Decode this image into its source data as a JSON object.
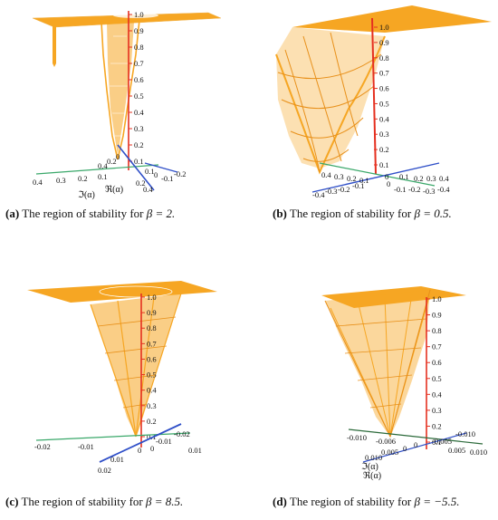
{
  "figures": [
    {
      "id": "a",
      "caption": {
        "label": "(a)",
        "text": "The region of stability for",
        "math": "β = 2."
      },
      "z_ticks": [
        "1.0",
        "0.9",
        "0.8",
        "0.7",
        "0.6",
        "0.5",
        "0.4",
        "0.3",
        "0.2",
        "0.1"
      ],
      "ticks_a": [
        "0.4",
        "0.3",
        "0.2",
        "0.1"
      ],
      "ticks_b": [
        "0.4",
        "0.2",
        "0",
        "0.2",
        "0.4"
      ],
      "ticks_c": [
        "0.1",
        "0",
        "-0.1",
        "-0.2"
      ],
      "axis_labels": [
        "ℑ(α)",
        "ℜ(α)"
      ]
    },
    {
      "id": "b",
      "caption": {
        "label": "(b)",
        "text": "The region of stability for",
        "math": "β = 0.5."
      },
      "z_ticks": [
        "1.0",
        "0.9",
        "0.8",
        "0.7",
        "0.6",
        "0.5",
        "0.4",
        "0.3",
        "0.2",
        "0.1"
      ],
      "ticks_a": [
        "0.4",
        "0.3",
        "0.2",
        "0.1",
        "0",
        "-0.1",
        "-0.2",
        "-0.3",
        "-0.4"
      ],
      "ticks_b": [
        "-0.4",
        "-0.3",
        "-0.2",
        "-0.1",
        "0",
        "0.1",
        "0.2",
        "0.3",
        "0.4"
      ],
      "axis_labels": []
    },
    {
      "id": "c",
      "caption": {
        "label": "(c)",
        "text": "The region of stability for",
        "math": "β = 8.5."
      },
      "z_ticks": [
        "1.0",
        "0.9",
        "0.8",
        "0.7",
        "0.6",
        "0.5",
        "0.4",
        "0.3",
        "0.2",
        "0.1"
      ],
      "ticks_a": [
        "-0.02",
        "-0.01",
        "0",
        "0.01"
      ],
      "ticks_b": [
        "0.02",
        "0.01",
        "0",
        "-0.01",
        "-0.02"
      ],
      "axis_labels": []
    },
    {
      "id": "d",
      "caption": {
        "label": "(d)",
        "text": "The region of stability for",
        "math": "β = −5.5."
      },
      "z_ticks": [
        "1.0",
        "0.9",
        "0.8",
        "0.7",
        "0.6",
        "0.5",
        "0.4",
        "0.3",
        "0.2",
        "0.1"
      ],
      "ticks_a": [
        "-0.010",
        "-0.006",
        "0",
        "0.005",
        "0.010"
      ],
      "ticks_b": [
        "0.010",
        "0.005",
        "0",
        "-0.005",
        "-0.010"
      ],
      "axis_labels": [
        "ℑ(α)",
        "ℜ(α)"
      ]
    }
  ],
  "colors": {
    "surface": "#f6a623",
    "surface_dark": "#e8901a",
    "z_axis": "#e53020",
    "axis_green": "#3aa86a",
    "axis_blue": "#2f4fc8",
    "axis_dark": "#2b6a3a"
  }
}
